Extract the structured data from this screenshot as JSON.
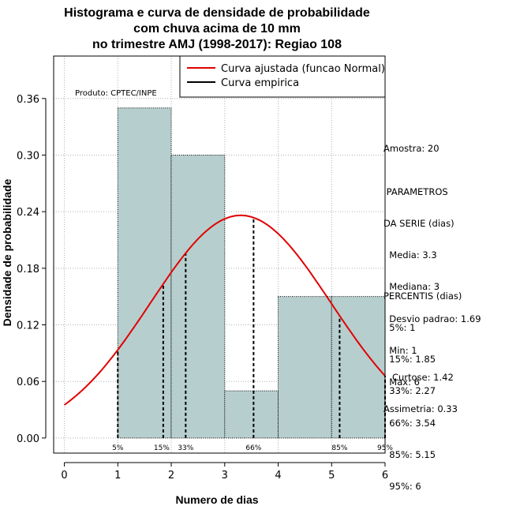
{
  "title_lines": [
    "Histograma e curva de densidade de probabilidade",
    "com chuva acima de 10 mm",
    "no trimestre AMJ (1998-2017): Regiao 108"
  ],
  "credit": "Produto: CPTEC/INPE",
  "legend": [
    {
      "label": "Curva ajustada (funcao Normal)",
      "color": "#e00000"
    },
    {
      "label": "Curva empirica",
      "color": "#000000"
    }
  ],
  "sidebar": {
    "sample": "Amostra: 20",
    "params_title": [
      " PARAMETROS",
      "DA SERIE (dias)"
    ],
    "params": [
      "  Media: 3.3",
      "  Mediana: 3",
      "  Desvio padrao: 1.69",
      "  Min: 1",
      "  Max: 6"
    ],
    "percentis_title": "PERCENTIS (dias)",
    "percentis": [
      "  5%: 1",
      "  15%: 1.85",
      "  33%: 2.27",
      "  66%: 3.54",
      "  85%: 5.15",
      "  95%: 6"
    ],
    "curtose": "   Curtose: 1.42",
    "assimetria": "Assimetria: 0.33"
  },
  "colors": {
    "bars": "#b7cece",
    "fit": "#e00000",
    "grid": "#b0b0b0"
  },
  "chart_data": {
    "type": "bar",
    "xlabel": "Numero de dias",
    "ylabel": "Densidade de probabilidade",
    "xlim": [
      -0.2,
      6.0
    ],
    "ylim": [
      -0.016,
      0.405
    ],
    "x_ticks": [
      0,
      1,
      2,
      3,
      4,
      5,
      6
    ],
    "y_ticks": [
      "0.00",
      "0.06",
      "0.12",
      "0.18",
      "0.24",
      "0.30",
      "0.36"
    ],
    "grid": true,
    "legend_position": "top-right",
    "bins": [
      {
        "x0": 1,
        "x1": 2,
        "density": 0.35
      },
      {
        "x0": 2,
        "x1": 3,
        "density": 0.3
      },
      {
        "x0": 3,
        "x1": 4,
        "density": 0.05
      },
      {
        "x0": 4,
        "x1": 5,
        "density": 0.15
      },
      {
        "x0": 5,
        "x1": 6,
        "density": 0.15
      }
    ],
    "normal_fit": {
      "mean": 3.3,
      "sd": 1.69,
      "x_range": [
        0,
        6
      ]
    },
    "percentiles": [
      {
        "label": "5%",
        "value": 1
      },
      {
        "label": "15%",
        "value": 1.85
      },
      {
        "label": "33%",
        "value": 2.27
      },
      {
        "label": "66%",
        "value": 3.54
      },
      {
        "label": "85%",
        "value": 5.15
      },
      {
        "label": "95%",
        "value": 6
      }
    ]
  }
}
